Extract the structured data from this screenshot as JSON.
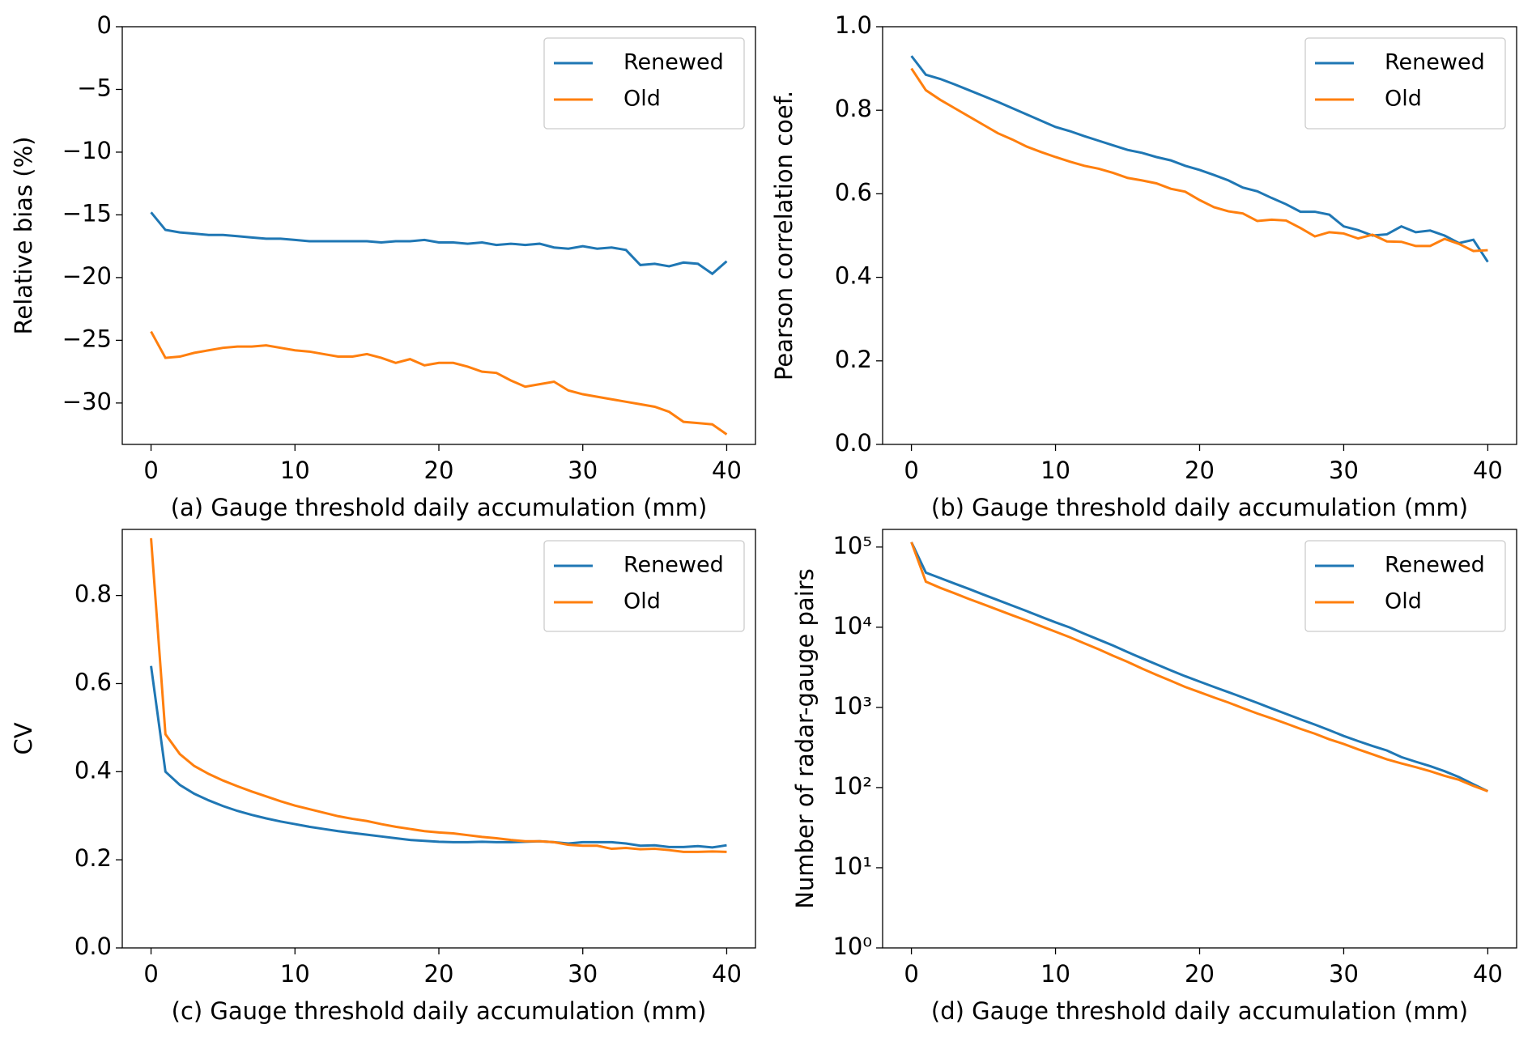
{
  "chart_data": [
    {
      "type": "line",
      "xlabel": "(a) Gauge threshold daily accumulation (mm)",
      "ylabel": "Relative bias (%)",
      "x": [
        0,
        1,
        2,
        3,
        4,
        5,
        6,
        7,
        8,
        9,
        10,
        11,
        12,
        13,
        14,
        15,
        16,
        17,
        18,
        19,
        20,
        21,
        22,
        23,
        24,
        25,
        26,
        27,
        28,
        29,
        30,
        31,
        32,
        33,
        34,
        35,
        36,
        37,
        38,
        39,
        40
      ],
      "xlim": [
        -2,
        42
      ],
      "xticks": [
        0,
        10,
        20,
        30,
        40
      ],
      "ylim": [
        -33.3,
        0
      ],
      "yticks": [
        {
          "value": -30,
          "label": "−30"
        },
        {
          "value": -25,
          "label": "−25"
        },
        {
          "value": -20,
          "label": "−20"
        },
        {
          "value": -15,
          "label": "−15"
        },
        {
          "value": -10,
          "label": "−10"
        },
        {
          "value": -5,
          "label": "−5"
        },
        0
      ],
      "legend": "upper right",
      "series": [
        {
          "name": "Renewed",
          "color": "#1f77b4",
          "values": [
            -14.8,
            -16.2,
            -16.4,
            -16.5,
            -16.6,
            -16.6,
            -16.7,
            -16.8,
            -16.9,
            -16.9,
            -17.0,
            -17.1,
            -17.1,
            -17.1,
            -17.1,
            -17.1,
            -17.2,
            -17.1,
            -17.1,
            -17.0,
            -17.2,
            -17.2,
            -17.3,
            -17.2,
            -17.4,
            -17.3,
            -17.4,
            -17.3,
            -17.6,
            -17.7,
            -17.5,
            -17.7,
            -17.6,
            -17.8,
            -19.0,
            -18.9,
            -19.1,
            -18.8,
            -18.9,
            -19.7,
            -18.7
          ]
        },
        {
          "name": "Old",
          "color": "#ff7f0e",
          "values": [
            -24.3,
            -26.4,
            -26.3,
            -26.0,
            -25.8,
            -25.6,
            -25.5,
            -25.5,
            -25.4,
            -25.6,
            -25.8,
            -25.9,
            -26.1,
            -26.3,
            -26.3,
            -26.1,
            -26.4,
            -26.8,
            -26.5,
            -27.0,
            -26.8,
            -26.8,
            -27.1,
            -27.5,
            -27.6,
            -28.2,
            -28.7,
            -28.5,
            -28.3,
            -29.0,
            -29.3,
            -29.5,
            -29.7,
            -29.9,
            -30.1,
            -30.3,
            -30.7,
            -31.5,
            -31.6,
            -31.7,
            -32.5
          ]
        }
      ]
    },
    {
      "type": "line",
      "xlabel": "(b) Gauge threshold daily accumulation (mm)",
      "ylabel": "Pearson correlation coef.",
      "x": [
        0,
        1,
        2,
        3,
        4,
        5,
        6,
        7,
        8,
        9,
        10,
        11,
        12,
        13,
        14,
        15,
        16,
        17,
        18,
        19,
        20,
        21,
        22,
        23,
        24,
        25,
        26,
        27,
        28,
        29,
        30,
        31,
        32,
        33,
        34,
        35,
        36,
        37,
        38,
        39,
        40
      ],
      "xlim": [
        -2,
        42
      ],
      "xticks": [
        0,
        10,
        20,
        30,
        40
      ],
      "ylim": [
        0,
        1
      ],
      "yticks": [
        {
          "value": 0,
          "label": "0.0"
        },
        0.2,
        0.4,
        0.6,
        0.8,
        {
          "value": 1,
          "label": "1.0"
        }
      ],
      "legend": "upper right",
      "series": [
        {
          "name": "Renewed",
          "color": "#1f77b4",
          "values": [
            0.93,
            0.885,
            0.875,
            0.862,
            0.848,
            0.834,
            0.82,
            0.805,
            0.79,
            0.775,
            0.76,
            0.75,
            0.738,
            0.727,
            0.716,
            0.705,
            0.698,
            0.688,
            0.68,
            0.667,
            0.657,
            0.645,
            0.632,
            0.615,
            0.606,
            0.59,
            0.575,
            0.557,
            0.557,
            0.55,
            0.522,
            0.513,
            0.5,
            0.503,
            0.522,
            0.508,
            0.512,
            0.5,
            0.482,
            0.49,
            0.437
          ]
        },
        {
          "name": "Old",
          "color": "#ff7f0e",
          "values": [
            0.9,
            0.848,
            0.825,
            0.805,
            0.785,
            0.765,
            0.745,
            0.73,
            0.713,
            0.7,
            0.688,
            0.677,
            0.667,
            0.66,
            0.65,
            0.638,
            0.632,
            0.625,
            0.612,
            0.605,
            0.585,
            0.568,
            0.558,
            0.553,
            0.535,
            0.538,
            0.536,
            0.518,
            0.498,
            0.508,
            0.505,
            0.493,
            0.502,
            0.486,
            0.485,
            0.475,
            0.475,
            0.492,
            0.48,
            0.463,
            0.465
          ]
        }
      ]
    },
    {
      "type": "line",
      "xlabel": "(c) Gauge threshold daily accumulation (mm)",
      "ylabel": "CV",
      "x": [
        0,
        1,
        2,
        3,
        4,
        5,
        6,
        7,
        8,
        9,
        10,
        11,
        12,
        13,
        14,
        15,
        16,
        17,
        18,
        19,
        20,
        21,
        22,
        23,
        24,
        25,
        26,
        27,
        28,
        29,
        30,
        31,
        32,
        33,
        34,
        35,
        36,
        37,
        38,
        39,
        40
      ],
      "xlim": [
        -2,
        42
      ],
      "xticks": [
        0,
        10,
        20,
        30,
        40
      ],
      "ylim": [
        0,
        0.95
      ],
      "yticks": [
        {
          "value": 0,
          "label": "0.0"
        },
        0.2,
        0.4,
        0.6,
        0.8
      ],
      "legend": "upper right",
      "series": [
        {
          "name": "Renewed",
          "color": "#1f77b4",
          "values": [
            0.64,
            0.4,
            0.37,
            0.35,
            0.335,
            0.322,
            0.311,
            0.302,
            0.294,
            0.287,
            0.281,
            0.275,
            0.27,
            0.265,
            0.261,
            0.257,
            0.253,
            0.249,
            0.245,
            0.243,
            0.241,
            0.24,
            0.24,
            0.241,
            0.24,
            0.24,
            0.241,
            0.242,
            0.24,
            0.237,
            0.24,
            0.24,
            0.24,
            0.237,
            0.232,
            0.233,
            0.229,
            0.229,
            0.231,
            0.228,
            0.233
          ]
        },
        {
          "name": "Old",
          "color": "#ff7f0e",
          "values": [
            0.93,
            0.485,
            0.44,
            0.413,
            0.395,
            0.38,
            0.367,
            0.355,
            0.344,
            0.333,
            0.323,
            0.315,
            0.307,
            0.299,
            0.293,
            0.288,
            0.281,
            0.275,
            0.27,
            0.265,
            0.262,
            0.26,
            0.256,
            0.252,
            0.249,
            0.245,
            0.242,
            0.242,
            0.24,
            0.234,
            0.232,
            0.232,
            0.225,
            0.227,
            0.224,
            0.225,
            0.222,
            0.218,
            0.218,
            0.219,
            0.218
          ]
        }
      ]
    },
    {
      "type": "line",
      "xlabel": "(d) Gauge threshold daily accumulation (mm)",
      "ylabel": "Number of radar-gauge pairs",
      "x": [
        0,
        1,
        2,
        3,
        4,
        5,
        6,
        7,
        8,
        9,
        10,
        11,
        12,
        13,
        14,
        15,
        16,
        17,
        18,
        19,
        20,
        21,
        22,
        23,
        24,
        25,
        26,
        27,
        28,
        29,
        30,
        31,
        32,
        33,
        34,
        35,
        36,
        37,
        38,
        39,
        40
      ],
      "xlim": [
        -2,
        42
      ],
      "xticks": [
        0,
        10,
        20,
        30,
        40
      ],
      "log_scale": true,
      "ylim": [
        1,
        166000
      ],
      "yticks": [
        {
          "value": 1,
          "label": "10⁰"
        },
        {
          "value": 10,
          "label": "10¹"
        },
        {
          "value": 100,
          "label": "10²"
        },
        {
          "value": 1000,
          "label": "10³"
        },
        {
          "value": 10000,
          "label": "10⁴"
        },
        {
          "value": 100000,
          "label": "10⁵"
        }
      ],
      "legend": "upper right",
      "series": [
        {
          "name": "Renewed",
          "color": "#1f77b4",
          "values": [
            115000,
            48000,
            41000,
            35000,
            30000,
            25500,
            21800,
            18600,
            15900,
            13500,
            11500,
            9900,
            8300,
            7000,
            5900,
            4900,
            4100,
            3450,
            2900,
            2450,
            2100,
            1800,
            1550,
            1330,
            1140,
            970,
            830,
            710,
            610,
            520,
            440,
            380,
            330,
            290,
            240,
            210,
            185,
            160,
            135,
            110,
            90
          ]
        },
        {
          "name": "Old",
          "color": "#ff7f0e",
          "values": [
            115000,
            37000,
            31000,
            26500,
            22500,
            19300,
            16500,
            14100,
            12100,
            10300,
            8800,
            7500,
            6300,
            5300,
            4400,
            3700,
            3050,
            2550,
            2150,
            1800,
            1550,
            1330,
            1150,
            980,
            840,
            730,
            630,
            540,
            470,
            400,
            350,
            300,
            260,
            225,
            200,
            180,
            160,
            140,
            125,
            105,
            90
          ]
        }
      ]
    }
  ]
}
